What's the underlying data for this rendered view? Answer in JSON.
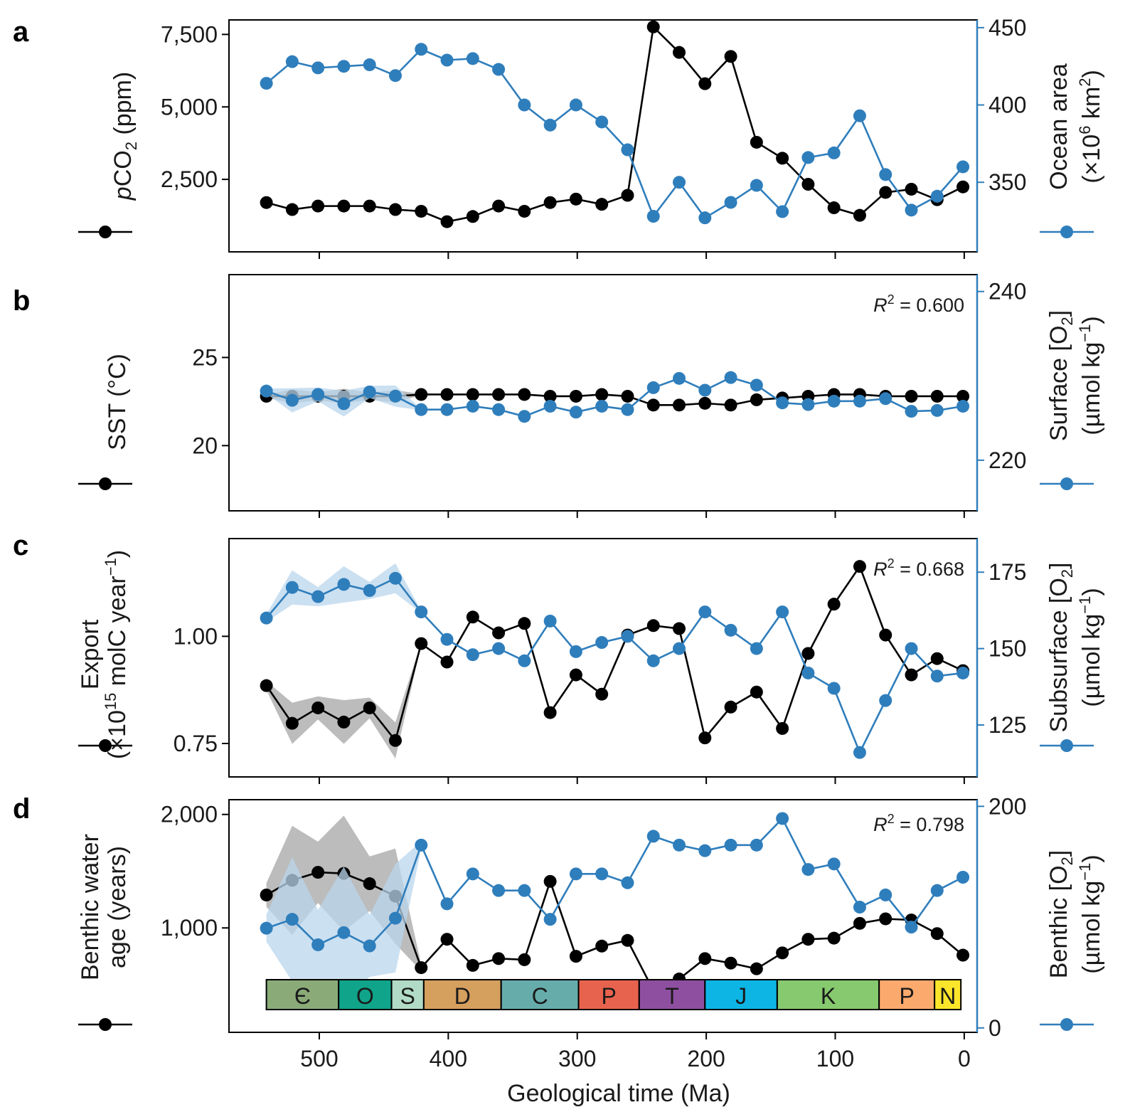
{
  "colors": {
    "primary": "#000000",
    "secondary": "#2f7ebc",
    "primary_band": "#a6a6a6",
    "secondary_band": "#b9d6ec"
  },
  "chart_data": [
    {
      "type": "line",
      "panel": "a",
      "x": [
        541,
        521,
        501,
        481,
        461,
        441,
        421,
        401,
        381,
        361,
        341,
        321,
        301,
        281,
        261,
        241,
        221,
        201,
        181,
        161,
        141,
        121,
        101,
        81,
        61,
        41,
        21,
        1
      ],
      "xlim": [
        570,
        -10
      ],
      "xticks": [
        500,
        400,
        300,
        200,
        100,
        0
      ],
      "series": [
        {
          "name": "pCO2",
          "axis": "left",
          "values": [
            1700,
            1460,
            1580,
            1580,
            1580,
            1460,
            1400,
            1040,
            1220,
            1580,
            1400,
            1700,
            1820,
            1640,
            1950,
            7760,
            6880,
            5800,
            6740,
            3780,
            3230,
            2330,
            1520,
            1260,
            2050,
            2160,
            1800,
            2240
          ]
        },
        {
          "name": "Ocean area",
          "axis": "right",
          "values": [
            414,
            428,
            424,
            425,
            426,
            419,
            436,
            429,
            430,
            423,
            400,
            387,
            400,
            389,
            371,
            328,
            350,
            327,
            337,
            348,
            331,
            366,
            369,
            393,
            355,
            332,
            341,
            360
          ]
        }
      ],
      "left_axis": {
        "ylim": [
          0,
          8000
        ],
        "ticks": [
          2500,
          5000,
          7500
        ],
        "tick_labels": [
          "2,500",
          "5,000",
          "7,500"
        ],
        "label_parts": {
          "italic": "p",
          "main": "CO",
          "sub": "2",
          "tail": " (ppm)"
        }
      },
      "right_axis": {
        "ylim": [
          305,
          455
        ],
        "ticks": [
          350,
          400,
          450
        ],
        "tick_labels": [
          "350",
          "400",
          "450"
        ],
        "label_line1": "Ocean area",
        "label_line2_parts": {
          "pre": "(×10",
          "sup1": "6",
          "mid": " km",
          "sup2": "2",
          "post": ")"
        }
      }
    },
    {
      "type": "line",
      "panel": "b",
      "x": [
        541,
        521,
        501,
        481,
        461,
        441,
        421,
        401,
        381,
        361,
        341,
        321,
        301,
        281,
        261,
        241,
        221,
        201,
        181,
        161,
        141,
        121,
        101,
        81,
        61,
        41,
        21,
        1
      ],
      "xlim": [
        570,
        -10
      ],
      "xticks": [
        500,
        400,
        300,
        200,
        100,
        0
      ],
      "annotation": {
        "italic": "R",
        "sup": "2",
        "rest": " = 0.600"
      },
      "series": [
        {
          "name": "SST",
          "axis": "left",
          "values": [
            22.8,
            22.8,
            22.8,
            22.8,
            22.8,
            22.8,
            22.9,
            22.9,
            22.9,
            22.9,
            22.9,
            22.8,
            22.8,
            22.9,
            22.8,
            22.3,
            22.3,
            22.4,
            22.3,
            22.6,
            22.7,
            22.8,
            22.9,
            22.9,
            22.8,
            22.8,
            22.8,
            22.8
          ]
        },
        {
          "name": "Surface [O2]",
          "axis": "right",
          "values": [
            228.2,
            227.1,
            227.8,
            226.7,
            228.1,
            227.6,
            226.0,
            226.0,
            226.4,
            226.0,
            225.2,
            226.4,
            225.7,
            226.4,
            226.0,
            228.6,
            229.7,
            228.3,
            229.8,
            228.9,
            226.8,
            226.6,
            227.0,
            227.0,
            227.3,
            225.8,
            225.9,
            226.4
          ]
        }
      ],
      "left_axis": {
        "ylim": [
          16.3,
          29.7
        ],
        "ticks": [
          20,
          25
        ],
        "tick_labels": [
          "20",
          "25"
        ],
        "label": "SST (°C)"
      },
      "right_axis": {
        "ylim": [
          214,
          242
        ],
        "ticks": [
          220,
          240
        ],
        "tick_labels": [
          "220",
          "240"
        ],
        "label_line1_parts": {
          "pre": "Surface [O",
          "sub": "2",
          "post": "]"
        },
        "label_line2_parts": {
          "pre": "(µmol kg",
          "sup": "−1",
          "post": ")"
        }
      }
    },
    {
      "type": "line",
      "panel": "c",
      "x": [
        541,
        521,
        501,
        481,
        461,
        441,
        421,
        401,
        381,
        361,
        341,
        321,
        301,
        281,
        261,
        241,
        221,
        201,
        181,
        161,
        141,
        121,
        101,
        81,
        61,
        41,
        21,
        1
      ],
      "xlim": [
        570,
        -10
      ],
      "xticks": [
        500,
        400,
        300,
        200,
        100,
        0
      ],
      "annotation": {
        "italic": "R",
        "sup": "2",
        "rest": " = 0.668"
      },
      "series": [
        {
          "name": "Export",
          "axis": "left",
          "values": [
            0.885,
            0.797,
            0.833,
            0.8,
            0.833,
            0.757,
            0.983,
            0.94,
            1.045,
            1.008,
            1.03,
            0.822,
            0.91,
            0.865,
            1.003,
            1.025,
            1.018,
            0.763,
            0.835,
            0.87,
            0.785,
            0.96,
            1.075,
            1.163,
            1.003,
            0.91,
            0.948,
            0.92
          ]
        },
        {
          "name": "Subsurface [O2]",
          "axis": "right",
          "values": [
            160,
            170,
            167,
            171,
            169,
            173,
            162,
            153,
            148,
            150,
            146,
            159,
            149,
            152,
            154,
            146,
            150,
            162,
            156,
            150,
            162,
            142,
            137,
            116,
            133,
            150,
            141,
            142
          ]
        }
      ],
      "left_axis": {
        "ylim": [
          0.672,
          1.228
        ],
        "ticks": [
          0.75,
          1.0
        ],
        "tick_labels": [
          "0.75",
          "1.00"
        ],
        "label_line1": "Export",
        "label_line2_parts": {
          "pre": "(×10",
          "sup1": "15",
          "mid": " molC year",
          "sup2": "−1",
          "post": ")"
        }
      },
      "right_axis": {
        "ylim": [
          108,
          186
        ],
        "ticks": [
          125,
          150,
          175
        ],
        "tick_labels": [
          "125",
          "150",
          "175"
        ],
        "label_line1_parts": {
          "pre": "Subsurface [O",
          "sub": "2",
          "post": "]"
        },
        "label_line2_parts": {
          "pre": "(µmol kg",
          "sup": "−1",
          "post": ")"
        }
      }
    },
    {
      "type": "line",
      "panel": "d",
      "x": [
        541,
        521,
        501,
        481,
        461,
        441,
        421,
        401,
        381,
        361,
        341,
        321,
        301,
        281,
        261,
        241,
        221,
        201,
        181,
        161,
        141,
        121,
        101,
        81,
        61,
        41,
        21,
        1
      ],
      "xlim": [
        570,
        -10
      ],
      "xticks": [
        500,
        400,
        300,
        200,
        100,
        0
      ],
      "xlabel": "Geological time (Ma)",
      "annotation": {
        "italic": "R",
        "sup": "2",
        "rest": " = 0.798"
      },
      "series": [
        {
          "name": "Benthic water age",
          "axis": "left",
          "values": [
            1290,
            1420,
            1490,
            1480,
            1390,
            1280,
            650,
            900,
            670,
            730,
            720,
            1410,
            750,
            840,
            890,
            450,
            550,
            730,
            690,
            640,
            780,
            900,
            910,
            1040,
            1080,
            1070,
            950,
            760
          ]
        },
        {
          "name": "Benthic [O2]",
          "axis": "right",
          "values": [
            90,
            98,
            75,
            86,
            74,
            99,
            165,
            112,
            139,
            124,
            124,
            98,
            139,
            139,
            131,
            173,
            165,
            160,
            165,
            165,
            189,
            143,
            148,
            109,
            120,
            91,
            124,
            136
          ]
        }
      ],
      "left_axis": {
        "ylim": [
          80,
          2130
        ],
        "ticks": [
          1000,
          2000
        ],
        "tick_labels": [
          "1,000",
          "2,000"
        ],
        "label_line1": "Benthic water",
        "label_line2": "age (years)"
      },
      "right_axis": {
        "ylim": [
          -4,
          206
        ],
        "ticks": [
          0,
          200
        ],
        "tick_labels": [
          "0",
          "200"
        ],
        "label_line1_parts": {
          "pre": "Benthic [O",
          "sub": "2",
          "post": "]"
        },
        "label_line2_parts": {
          "pre": "(µmol kg",
          "sup": "−1",
          "post": ")"
        }
      },
      "periods": [
        {
          "label": "Є",
          "start": 541,
          "end": 485,
          "color": "#8aab78"
        },
        {
          "label": "O",
          "start": 485,
          "end": 444,
          "color": "#10a48a"
        },
        {
          "label": "S",
          "start": 444,
          "end": 419,
          "color": "#b1dbc6"
        },
        {
          "label": "D",
          "start": 419,
          "end": 359,
          "color": "#d59f5e"
        },
        {
          "label": "C",
          "start": 359,
          "end": 299,
          "color": "#66acab"
        },
        {
          "label": "P",
          "start": 299,
          "end": 252,
          "color": "#e8634d"
        },
        {
          "label": "T",
          "start": 252,
          "end": 201,
          "color": "#8e4fa0"
        },
        {
          "label": "J",
          "start": 201,
          "end": 145,
          "color": "#0cb5e4"
        },
        {
          "label": "K",
          "start": 145,
          "end": 66,
          "color": "#86c96e"
        },
        {
          "label": "P",
          "start": 66,
          "end": 23,
          "color": "#fba96d"
        },
        {
          "label": "N",
          "start": 23,
          "end": 2.6,
          "color": "#fbe52a"
        }
      ]
    }
  ]
}
